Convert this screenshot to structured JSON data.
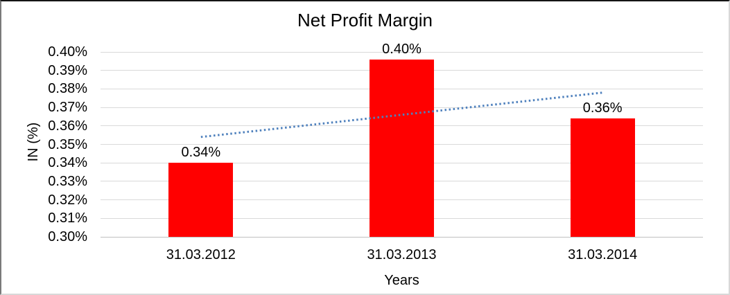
{
  "chart_data": {
    "type": "bar",
    "title": "Net Profit Margin",
    "xlabel": "Years",
    "ylabel": "IN (%)",
    "categories": [
      "31.03.2012",
      "31.03.2013",
      "31.03.2014"
    ],
    "values": [
      0.34,
      0.396,
      0.364
    ],
    "data_labels": [
      "0.34%",
      "0.40%",
      "0.36%"
    ],
    "y_tick_labels": [
      "0.40%",
      "0.39%",
      "0.38%",
      "0.37%",
      "0.36%",
      "0.35%",
      "0.34%",
      "0.33%",
      "0.32%",
      "0.31%",
      "0.30%"
    ],
    "ylim": [
      0.3,
      0.4
    ],
    "y_tick_step": 0.01,
    "gridlines": true,
    "legend": "none",
    "bar_color": "#ff0000",
    "gridline_color": "#d9d9d9",
    "axis_line_color": "#bfbfbf",
    "trendline": {
      "type": "linear",
      "style": "dotted",
      "color": "#4f81bd",
      "start_value": 0.354,
      "end_value": 0.378
    }
  }
}
